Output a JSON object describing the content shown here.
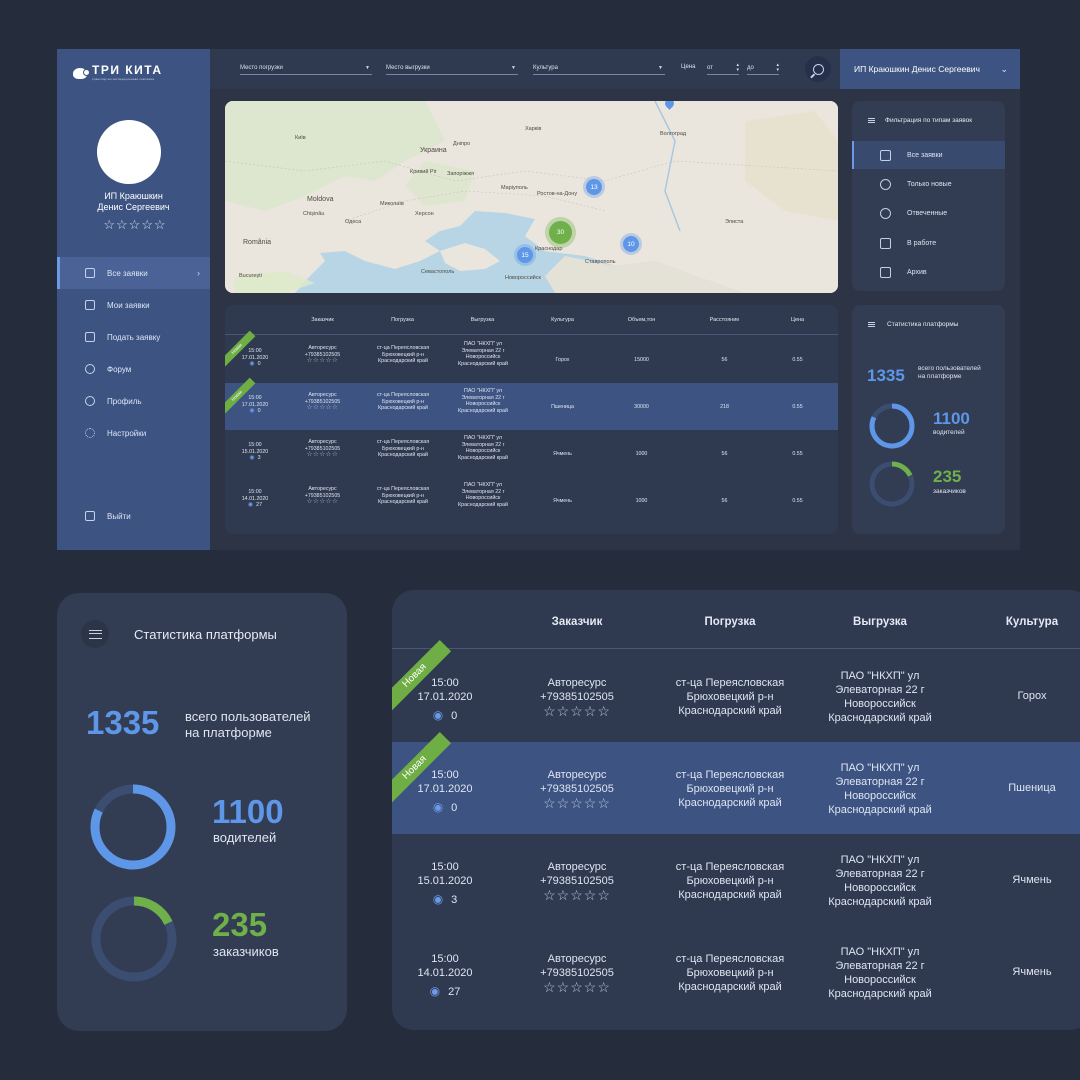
{
  "sidebar": {
    "logo_text": "ТРИ КИТА",
    "logo_sub": "транспортно-экспедиционная компания",
    "user_name_line1": "ИП Краюшкин",
    "user_name_line2": "Денис Сергеевич",
    "rating_stars": "☆☆☆☆☆",
    "nav": [
      {
        "label": "Все заявки",
        "icon": "list-icon"
      },
      {
        "label": "Мои заявки",
        "icon": "document-icon"
      },
      {
        "label": "Подать заявку",
        "icon": "add-document-icon"
      },
      {
        "label": "Форум",
        "icon": "chat-icon"
      },
      {
        "label": "Профиль",
        "icon": "user-icon"
      },
      {
        "label": "Настройки",
        "icon": "gear-icon"
      }
    ],
    "logout_label": "Выйти"
  },
  "topbar": {
    "loading_place": "Место погрузки",
    "unloading_place": "Место выгрузки",
    "culture": "Культура",
    "price_label": "Цена",
    "price_from": "от",
    "price_to": "до",
    "user_name": "ИП Краюшкин Денис Сергеевич"
  },
  "map": {
    "labels": {
      "kyiv": "Київ",
      "dnipro": "Дніпро",
      "kharkiv": "Харків",
      "ukraina": "Украина",
      "kryvyi_rih": "Кривий Ріг",
      "zaporizhzhia": "Запоріжжя",
      "mariupol": "Маріуполь",
      "rostov": "Ростов-на-Дону",
      "volgograd": "Волгоград",
      "odesa": "Одеса",
      "mykolaiv": "Миколаїв",
      "kherson": "Херсон",
      "moldova": "Moldova",
      "chisinau": "Chișinău",
      "bucuresti": "București",
      "romania": "România",
      "sevastopol": "Севастополь",
      "novorossiysk": "Новороссийск",
      "stavropol": "Ставрополь",
      "krasnodar": "Краснодар",
      "elista": "Элиста"
    },
    "clusters": [
      {
        "count": "13",
        "color": "blue"
      },
      {
        "count": "30",
        "color": "green"
      },
      {
        "count": "10",
        "color": "blue"
      },
      {
        "count": "15",
        "color": "blue"
      }
    ]
  },
  "orders_table": {
    "headers": {
      "customer": "Заказчик",
      "loading": "Погрузка",
      "unloading": "Выгрузка",
      "culture": "Культура",
      "volume": "Объем,тон",
      "distance": "Расстояние",
      "price": "Цена"
    },
    "new_badge": "Новая",
    "rows": [
      {
        "time": "15:00",
        "date": "17.01.2020",
        "views": "0",
        "is_new": true,
        "customer_name": "Авторесурс",
        "customer_phone": "+79385102505",
        "stars": "☆☆☆☆☆",
        "loading_1": "ст-ца Переясловская",
        "loading_2": "Брюховецкий р-н",
        "loading_3": "Краснодарский край",
        "unloading_1": "ПАО \"НКХП\" ул",
        "unloading_2": "Элеваторная 22 г",
        "unloading_3": "Новороссийск",
        "unloading_4": "Краснодарский край",
        "culture": "Горох",
        "volume": "15000",
        "distance": "56",
        "price": "0.55"
      },
      {
        "time": "15:00",
        "date": "17.01.2020",
        "views": "0",
        "is_new": true,
        "customer_name": "Авторесурс",
        "customer_phone": "+79385102505",
        "stars": "☆☆☆☆☆",
        "loading_1": "ст-ца Переясловская",
        "loading_2": "Брюховецкий р-н",
        "loading_3": "Краснодарский край",
        "unloading_1": "ПАО \"НКХП\" ул",
        "unloading_2": "Элеваторная 22 г",
        "unloading_3": "Новороссийск",
        "unloading_4": "Краснодарский край",
        "culture": "Пшеница",
        "volume": "30000",
        "distance": "218",
        "price": "0.55"
      },
      {
        "time": "15:00",
        "date": "15.01.2020",
        "views": "3",
        "is_new": false,
        "customer_name": "Авторесурс",
        "customer_phone": "+79385102505",
        "stars": "☆☆☆☆☆",
        "loading_1": "ст-ца Переясловская",
        "loading_2": "Брюховецкий р-н",
        "loading_3": "Краснодарский край",
        "unloading_1": "ПАО \"НКХП\" ул",
        "unloading_2": "Элеваторная 22 г",
        "unloading_3": "Новороссийск",
        "unloading_4": "Краснодарский край",
        "culture": "Ячмень",
        "volume": "1000",
        "distance": "56",
        "price": "0.55"
      },
      {
        "time": "15:00",
        "date": "14.01.2020",
        "views": "27",
        "is_new": false,
        "customer_name": "Авторесурс",
        "customer_phone": "+79385102505",
        "stars": "☆☆☆☆☆",
        "loading_1": "ст-ца Переясловская",
        "loading_2": "Брюховецкий р-н",
        "loading_3": "Краснодарский край",
        "unloading_1": "ПАО \"НКХП\" ул",
        "unloading_2": "Элеваторная 22 г",
        "unloading_3": "Новороссийск",
        "unloading_4": "Краснодарский край",
        "culture": "Ячмень",
        "volume": "1000",
        "distance": "56",
        "price": "0.55"
      }
    ]
  },
  "filter_panel": {
    "title": "Фильтрация по типам заявок",
    "items": [
      {
        "label": "Все заявки",
        "icon": "documents-icon"
      },
      {
        "label": "Только новые",
        "icon": "clock-icon"
      },
      {
        "label": "Отвеченные",
        "icon": "reply-icon"
      },
      {
        "label": "В работе",
        "icon": "briefcase-icon"
      },
      {
        "label": "Архив",
        "icon": "archive-icon"
      }
    ]
  },
  "stats": {
    "title": "Статистика платформы",
    "total": "1335",
    "total_label_1": "всего пользователей",
    "total_label_2": "на платформе",
    "drivers": "1100",
    "drivers_label": "водителей",
    "drivers_fraction": 0.82,
    "customers": "235",
    "customers_label": "заказчиков",
    "customers_fraction": 0.18
  },
  "colors": {
    "accent_blue": "#5f97e8",
    "accent_green": "#6fb04b",
    "sidebar": "#3d5382",
    "background": "#252c3b"
  }
}
